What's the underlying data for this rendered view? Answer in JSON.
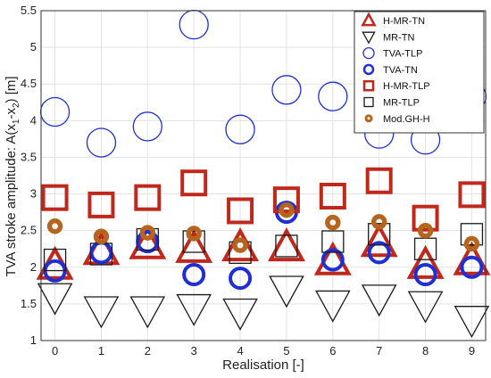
{
  "chart_data": {
    "type": "scatter",
    "xlabel": "Realisation [-]",
    "ylabel": "TVA stroke amplitude: A(x",
    "ylabel_sub1": "1",
    "ylabel_mid": "-x",
    "ylabel_sub2": "2",
    "ylabel_end": ") [m]",
    "xlim": [
      -0.3,
      9.3
    ],
    "ylim": [
      1,
      5.5
    ],
    "xticks": [
      0,
      1,
      2,
      3,
      4,
      5,
      6,
      7,
      8,
      9
    ],
    "yticks": [
      1,
      1.5,
      2,
      2.5,
      3,
      3.5,
      4,
      4.5,
      5,
      5.5
    ],
    "ytick_labels": [
      "1",
      "1.5",
      "2",
      "2.5",
      "3",
      "3.5",
      "4",
      "4.5",
      "5",
      "5.5"
    ],
    "grid": true,
    "legend_position": "top-right",
    "series": [
      {
        "name": "H-MR-TN",
        "marker": "triangle-up",
        "color": "#c0281c",
        "bold": true,
        "x": [
          0,
          1,
          2,
          3,
          4,
          5,
          6,
          7,
          8,
          9
        ],
        "y": [
          2.02,
          2.22,
          2.3,
          2.25,
          2.27,
          2.27,
          2.08,
          2.33,
          2.03,
          2.08
        ]
      },
      {
        "name": "MR-TN",
        "marker": "triangle-down",
        "color": "#1a1a1a",
        "bold": false,
        "x": [
          0,
          1,
          2,
          3,
          4,
          5,
          6,
          7,
          8,
          9
        ],
        "y": [
          1.6,
          1.42,
          1.42,
          1.45,
          1.39,
          1.7,
          1.5,
          1.58,
          1.49,
          1.29
        ]
      },
      {
        "name": "TVA-TLP",
        "marker": "circle",
        "color": "#1f2fd6",
        "bold": false,
        "x": [
          0,
          1,
          2,
          3,
          4,
          5,
          6,
          7,
          8,
          9
        ],
        "y": [
          4.12,
          3.7,
          3.92,
          5.31,
          3.88,
          4.42,
          4.33,
          3.82,
          3.74,
          4.33
        ]
      },
      {
        "name": "TVA-TN",
        "marker": "circle",
        "color": "#1f2fd6",
        "bold": true,
        "x": [
          0,
          1,
          2,
          3,
          4,
          5,
          6,
          7,
          8,
          9
        ],
        "y": [
          1.95,
          2.2,
          2.35,
          1.9,
          1.85,
          2.75,
          2.1,
          2.2,
          1.9,
          2.0
        ]
      },
      {
        "name": "H-MR-TLP",
        "marker": "square",
        "color": "#c0281c",
        "bold": true,
        "x": [
          0,
          1,
          2,
          3,
          4,
          5,
          6,
          7,
          8,
          9
        ],
        "y": [
          2.95,
          2.85,
          2.95,
          3.15,
          2.77,
          2.92,
          2.97,
          3.18,
          2.67,
          2.99
        ]
      },
      {
        "name": "MR-TLP",
        "marker": "square",
        "color": "#1a1a1a",
        "bold": false,
        "x": [
          0,
          1,
          2,
          3,
          4,
          5,
          6,
          7,
          8,
          9
        ],
        "y": [
          2.1,
          2.18,
          2.38,
          2.35,
          2.2,
          2.29,
          2.35,
          2.45,
          2.25,
          2.45
        ]
      },
      {
        "name": "Mod.GH-H",
        "marker": "circle-filled",
        "color": "#b5651d",
        "bold": true,
        "x": [
          0,
          1,
          2,
          3,
          4,
          5,
          6,
          7,
          8,
          9
        ],
        "y": [
          2.56,
          2.42,
          2.47,
          2.46,
          2.3,
          2.78,
          2.61,
          2.62,
          2.5,
          2.32
        ]
      }
    ]
  }
}
